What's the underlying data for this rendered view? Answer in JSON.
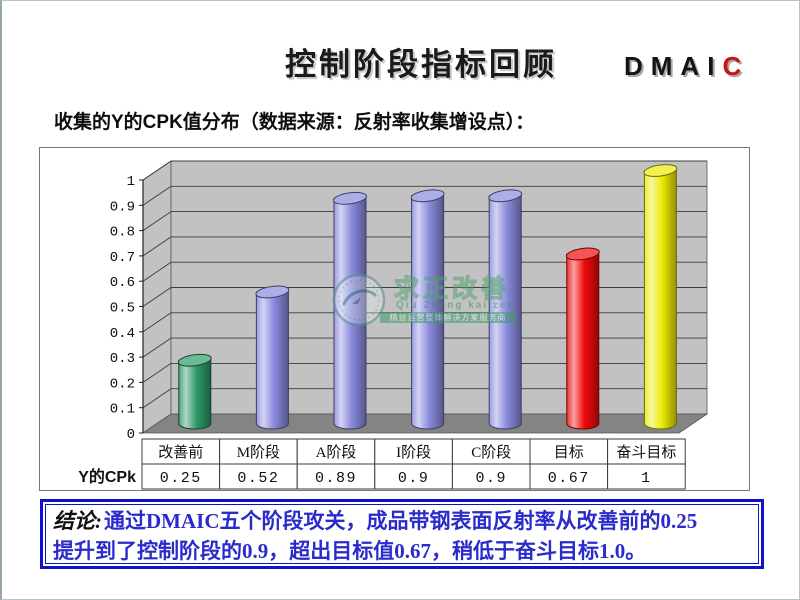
{
  "page": {
    "title": "控制阶段指标回顾",
    "dmaic": {
      "black_part": "DMAI",
      "red_part": "C",
      "highlight_color": "#cc1414"
    },
    "subtitle": "收集的Y的CPK值分布（数据来源：反射率收集增设点）："
  },
  "chart_data": {
    "type": "bar",
    "style": "3d-cylinder",
    "title": "",
    "categories": [
      "改善前",
      "M阶段",
      "A阶段",
      "I阶段",
      "C阶段",
      "目标",
      "奋斗目标"
    ],
    "series": [
      {
        "name": "Y的CPk",
        "values": [
          0.25,
          0.52,
          0.89,
          0.9,
          0.9,
          0.67,
          1
        ]
      }
    ],
    "value_labels": [
      "0.25",
      "0.52",
      "0.89",
      "0.9",
      "0.9",
      "0.67",
      "1"
    ],
    "bar_colors": [
      "#2e9968",
      "#8a8ade",
      "#8a8ade",
      "#8a8ade",
      "#8a8ade",
      "#ee0a0a",
      "#ebeb06"
    ],
    "ylim": [
      0,
      1
    ],
    "ytick_step": 0.1,
    "ytick_labels": [
      "0",
      "0.1",
      "0.2",
      "0.3",
      "0.4",
      "0.5",
      "0.6",
      "0.7",
      "0.8",
      "0.9",
      "1"
    ],
    "grid": true,
    "legend_position": "none",
    "row_header": "Y的CPk",
    "data_table_shown": true,
    "wall_color": "#c2c2c2",
    "floor_color": "#848484"
  },
  "watermark": {
    "name": "求正改善",
    "pinyin": "Qiu Zheng kai zen",
    "banner": "精益运营整体解决方案服务商"
  },
  "conclusion": {
    "prefix": "结论:",
    "line1": "通过DMAIC五个阶段攻关，成品带钢表面反射率从改善前的0.25",
    "line2": "提升到了控制阶段的0.9，超出目标值0.67，稍低于奋斗目标1.0。",
    "text_color": "#2b2bcc",
    "border_color": "#1212cc"
  }
}
